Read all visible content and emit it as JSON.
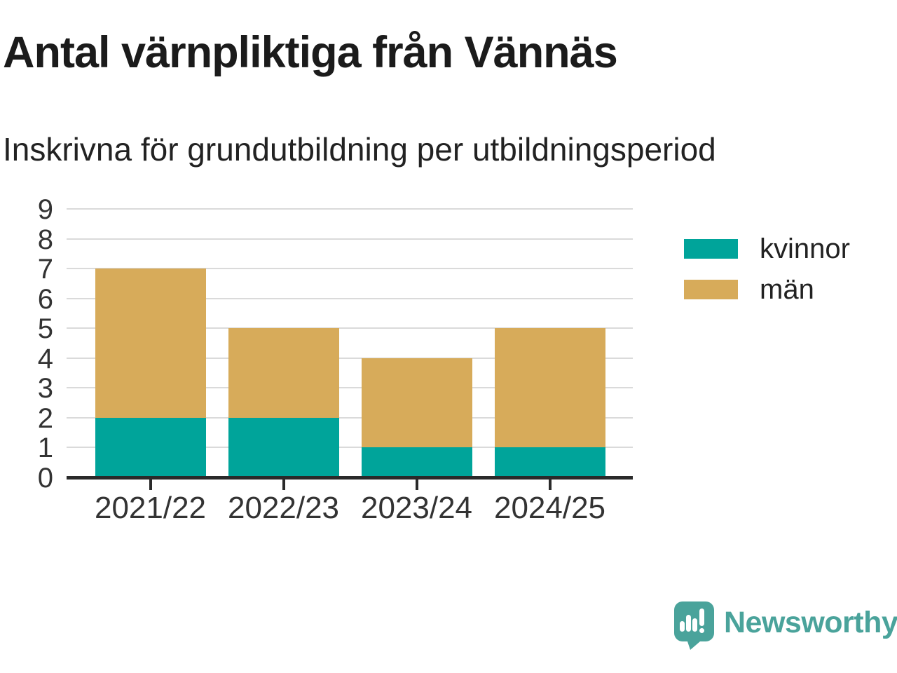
{
  "title": "Antal värnpliktiga från Vännäs",
  "subtitle": "Inskrivna för grundutbildning per utbildningsperiod",
  "chart_data": {
    "type": "bar",
    "stacked": true,
    "title": "Antal värnpliktiga från Vännäs",
    "subtitle": "Inskrivna för grundutbildning per utbildningsperiod",
    "categories": [
      "2021/22",
      "2022/23",
      "2023/24",
      "2024/25"
    ],
    "series": [
      {
        "name": "kvinnor",
        "color": "#00a49a",
        "values": [
          2,
          2,
          1,
          1
        ]
      },
      {
        "name": "män",
        "color": "#d7ab5a",
        "values": [
          5,
          3,
          3,
          4
        ]
      }
    ],
    "ylim": [
      0,
      9
    ],
    "yticks": [
      0,
      1,
      2,
      3,
      4,
      5,
      6,
      7,
      8,
      9
    ],
    "xlabel": "",
    "ylabel": "",
    "grid": true,
    "legend_position": "right",
    "colors": {
      "axis": "#2a2a2a",
      "gridline": "#dadada",
      "tick_label": "#333333"
    }
  },
  "branding": {
    "wordmark": "Newsworthy",
    "color": "#4aa39b",
    "icon": "speech-bubble-bar-chart-icon"
  }
}
